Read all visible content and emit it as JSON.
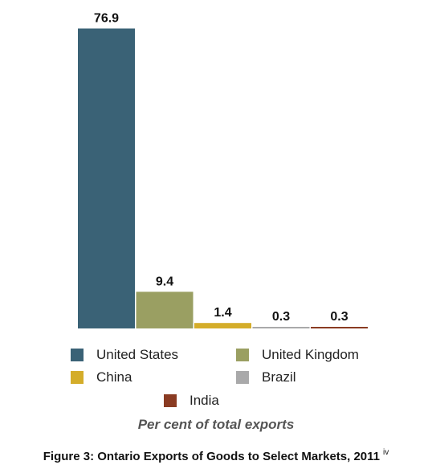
{
  "chart_data": {
    "type": "bar",
    "categories": [
      "United States",
      "United Kingdom",
      "China",
      "Brazil",
      "India"
    ],
    "values": [
      76.9,
      9.4,
      1.4,
      0.3,
      0.3
    ],
    "value_labels": [
      "76.9",
      "9.4",
      "1.4",
      "0.3",
      "0.3"
    ],
    "colors": [
      "#3a6276",
      "#9a9f62",
      "#d4ad2a",
      "#a9a9aa",
      "#8a3b22"
    ],
    "ylim": [
      0,
      77
    ],
    "grid": false,
    "legend_placement": "bottom",
    "xlabel": "Per cent of total exports",
    "title": "Figure 3: Ontario Exports of Goods to Select Markets, 2011",
    "title_note": "iv"
  }
}
